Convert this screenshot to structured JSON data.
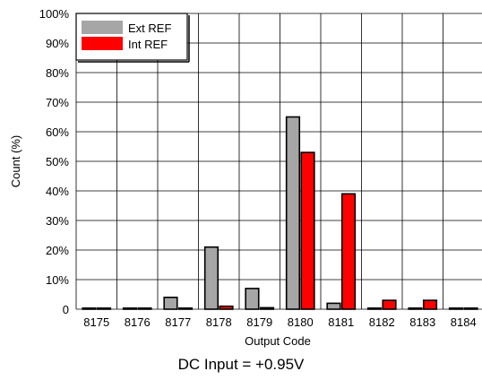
{
  "chart_data": {
    "type": "bar",
    "categories": [
      "8175",
      "8176",
      "8177",
      "8178",
      "8179",
      "8180",
      "8181",
      "8182",
      "8183",
      "8184"
    ],
    "series": [
      {
        "name": "Ext REF",
        "color": "#a6a6a6",
        "values": [
          0,
          0,
          4,
          21,
          7,
          65,
          2,
          0,
          0,
          0
        ]
      },
      {
        "name": "Int REF",
        "color": "#ff0000",
        "values": [
          0,
          0,
          0,
          1,
          0.5,
          53,
          39,
          3,
          3,
          0
        ]
      }
    ],
    "ylim": [
      0,
      100
    ],
    "yticks": [
      "0",
      "10%",
      "20%",
      "30%",
      "40%",
      "50%",
      "60%",
      "70%",
      "80%",
      "90%",
      "100%"
    ],
    "xlabel": "Output Code",
    "ylabel": "Count (%)",
    "legend_position": "top-left",
    "grid": true,
    "caption": "DC Input = +0.95V"
  }
}
